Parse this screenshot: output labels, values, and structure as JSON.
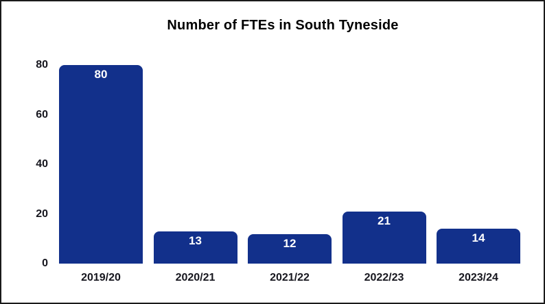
{
  "chart_data": {
    "type": "bar",
    "title": "Number of FTEs in South Tyneside",
    "categories": [
      "2019/20",
      "2020/21",
      "2021/22",
      "2022/23",
      "2023/24"
    ],
    "values": [
      80,
      13,
      12,
      21,
      14
    ],
    "xlabel": "",
    "ylabel": "",
    "yticks": [
      0,
      20,
      40,
      60,
      80
    ],
    "ylim": [
      0,
      80
    ],
    "grid": false,
    "legend": false,
    "colors": {
      "bar": "#12308B",
      "value_label": "#ffffff",
      "axis_text": "#16161e",
      "title_text": "#000000",
      "frame_border": "#1a1a1a",
      "background": "#ffffff"
    }
  }
}
